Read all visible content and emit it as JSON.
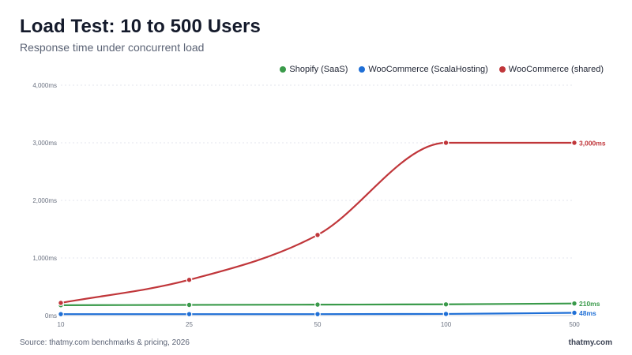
{
  "title": "Load Test: 10 to 500 Users",
  "subtitle": "Response time under concurrent load",
  "footer": {
    "source": "Source: thatmy.com benchmarks & pricing, 2026",
    "brand": "thatmy.com"
  },
  "chart_data": {
    "type": "line",
    "title": "Load Test: 10 to 500 Users",
    "subtitle": "Response time under concurrent load",
    "xlabel": "",
    "ylabel": "",
    "categories": [
      "10",
      "25",
      "50",
      "100",
      "500"
    ],
    "x_scale": "categorical",
    "ylim": [
      0,
      4000
    ],
    "y_ticks": [
      0,
      1000,
      2000,
      3000,
      4000
    ],
    "y_tick_labels": [
      "0ms",
      "1,000ms",
      "2,000ms",
      "3,000ms",
      "4,000ms"
    ],
    "grid": true,
    "legend_position": "top-right",
    "series": [
      {
        "name": "Shopify (SaaS)",
        "color": "#3a9a4a",
        "values": [
          180,
          185,
          190,
          195,
          210
        ],
        "end_label": "210ms"
      },
      {
        "name": "WooCommerce (ScalaHosting)",
        "color": "#1f6fd6",
        "values": [
          25,
          25,
          25,
          28,
          48
        ],
        "end_label": "48ms"
      },
      {
        "name": "WooCommerce (shared)",
        "color": "#c0363a",
        "values": [
          220,
          620,
          1400,
          3000,
          3000
        ],
        "end_label": "3,000ms"
      }
    ]
  }
}
